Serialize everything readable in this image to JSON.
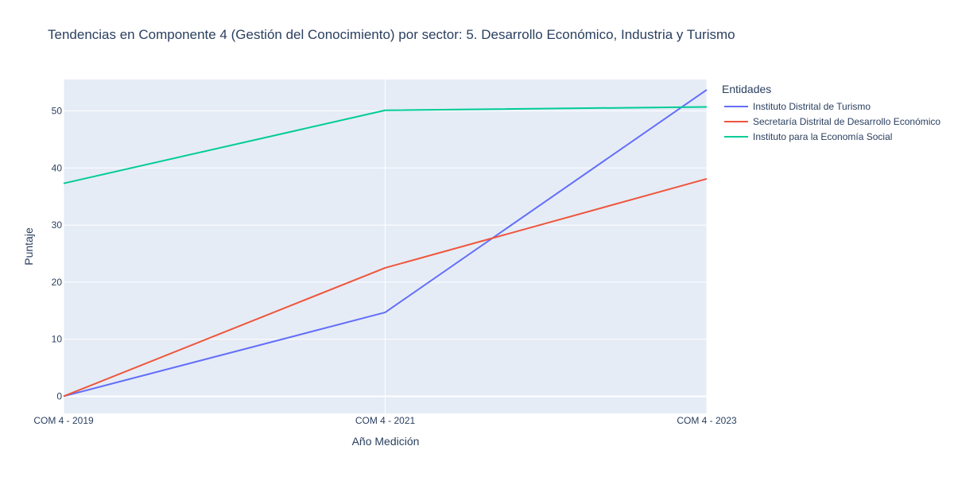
{
  "chart_data": {
    "type": "line",
    "title": "Tendencias en Componente 4 (Gestión del Conocimiento) por sector: 5. Desarrollo Económico, Industria y Turismo",
    "xlabel": "Año Medición",
    "ylabel": "Puntaje",
    "categories": [
      "COM 4 - 2019",
      "COM 4 - 2021",
      "COM 4 - 2023"
    ],
    "ylim": [
      -3,
      55.5
    ],
    "yticks": [
      0,
      10,
      20,
      30,
      40,
      50
    ],
    "grid": true,
    "legend_title": "Entidades",
    "legend_position": "right",
    "series": [
      {
        "name": "Instituto Distrital de Turismo",
        "color": "#636efa",
        "values": [
          0,
          14.7,
          53.7
        ]
      },
      {
        "name": "Secretaría Distrital de Desarrollo Económico",
        "color": "#ef553b",
        "values": [
          0,
          22.5,
          38.1
        ]
      },
      {
        "name": "Instituto para la Economía Social",
        "color": "#00cc96",
        "values": [
          37.3,
          50.1,
          50.7
        ]
      }
    ]
  }
}
